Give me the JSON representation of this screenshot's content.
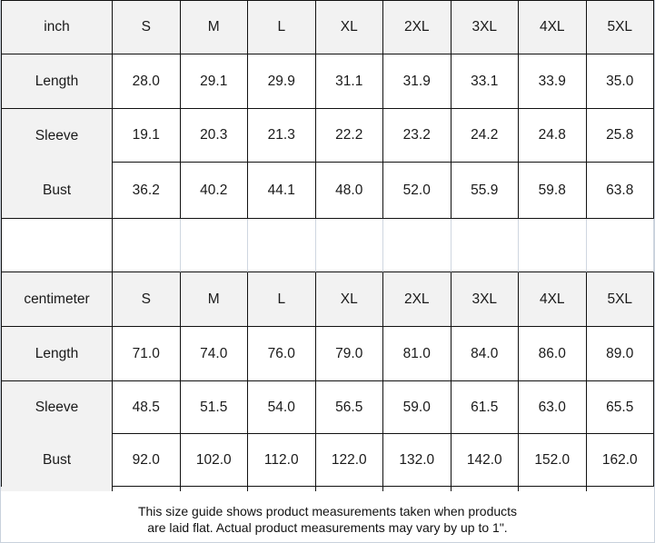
{
  "table": {
    "sections": [
      {
        "unit_label": "inch",
        "sizes": [
          "S",
          "M",
          "L",
          "XL",
          "2XL",
          "3XL",
          "4XL",
          "5XL"
        ],
        "rows": [
          {
            "label": "Length",
            "values": [
              "28.0",
              "29.1",
              "29.9",
              "31.1",
              "31.9",
              "33.1",
              "33.9",
              "35.0"
            ]
          },
          {
            "label": "Sleeve",
            "values": [
              "19.1",
              "20.3",
              "21.3",
              "22.2",
              "23.2",
              "24.2",
              "24.8",
              "25.8"
            ]
          },
          {
            "label": "Bust",
            "values": [
              "36.2",
              "40.2",
              "44.1",
              "48.0",
              "52.0",
              "55.9",
              "59.8",
              "63.8"
            ]
          }
        ]
      },
      {
        "unit_label": "centimeter",
        "sizes": [
          "S",
          "M",
          "L",
          "XL",
          "2XL",
          "3XL",
          "4XL",
          "5XL"
        ],
        "rows": [
          {
            "label": "Length",
            "values": [
              "71.0",
              "74.0",
              "76.0",
              "79.0",
              "81.0",
              "84.0",
              "86.0",
              "89.0"
            ]
          },
          {
            "label": "Sleeve",
            "values": [
              "48.5",
              "51.5",
              "54.0",
              "56.5",
              "59.0",
              "61.5",
              "63.0",
              "65.5"
            ]
          },
          {
            "label": "Bust",
            "values": [
              "92.0",
              "102.0",
              "112.0",
              "122.0",
              "132.0",
              "142.0",
              "152.0",
              "162.0"
            ]
          }
        ]
      }
    ]
  },
  "footer": {
    "note_line1": "This size guide shows product measurements taken when products",
    "note_line2": "are laid flat. Actual product measurements may vary by up to 1\"."
  },
  "colors": {
    "border_dark": "#111111",
    "border_light": "#cfd6e0",
    "cell_bg": "#f2f2f2",
    "outer_border": "#c9d1dc"
  }
}
